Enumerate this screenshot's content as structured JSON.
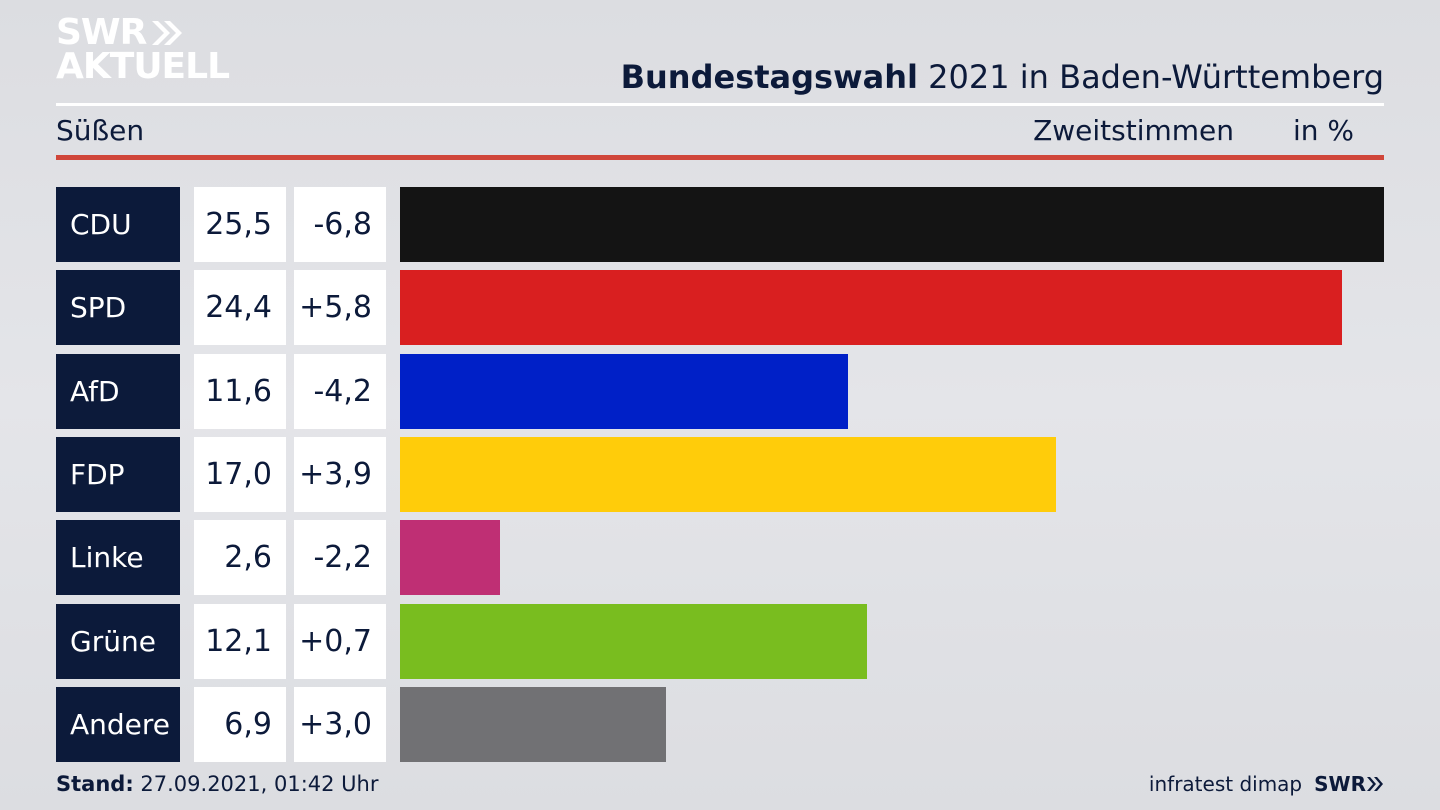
{
  "brand": {
    "line1": "SWR",
    "line2": "AKTUELL",
    "small": "SWR"
  },
  "header": {
    "title_bold": "Bundestagswahl",
    "title_rest": " 2021 in Baden-Württemberg",
    "location": "Süßen",
    "metric": "Zweitstimmen",
    "unit": "in %"
  },
  "chart_data": {
    "type": "bar",
    "title": "Bundestagswahl 2021 in Baden-Württemberg",
    "categories": [
      "CDU",
      "SPD",
      "AfD",
      "FDP",
      "Linke",
      "Grüne",
      "Andere"
    ],
    "values": [
      25.5,
      24.4,
      11.6,
      17.0,
      2.6,
      12.1,
      6.9
    ],
    "value_labels": [
      "25,5",
      "24,4",
      "11,6",
      "17,0",
      "2,6",
      "12,1",
      "6,9"
    ],
    "diff_labels": [
      "-6,8",
      "+5,8",
      "-4,2",
      "+3,9",
      "-2,2",
      "+0,7",
      "+3,0"
    ],
    "colors": [
      "#141414",
      "#d91f20",
      "#0020c7",
      "#ffcc0a",
      "#bf2f74",
      "#79bd1f",
      "#717174"
    ],
    "orientation": "horizontal",
    "ylabel": "Zweitstimmen in %",
    "xlim": [
      0,
      25.5
    ]
  },
  "footer": {
    "stand_label": "Stand:",
    "stand_value": " 27.09.2021, 01:42 Uhr",
    "source": "infratest dimap"
  }
}
